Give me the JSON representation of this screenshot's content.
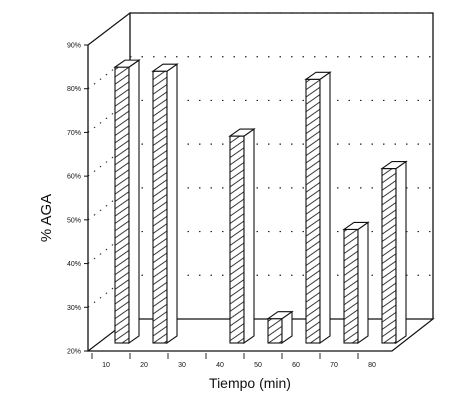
{
  "chart_data": {
    "type": "bar",
    "title": "",
    "xlabel": "Tiempo (min)",
    "ylabel": "% AGA",
    "x_tick_labels": [
      "10",
      "20",
      "30",
      "40",
      "50",
      "60",
      "70",
      "80"
    ],
    "y_tick_labels": [
      "20%",
      "30%",
      "40%",
      "50%",
      "60%",
      "70%",
      "80%",
      "90%"
    ],
    "ylim": [
      20,
      90
    ],
    "grid": "dotted horizontal on back wall",
    "style": "3D bars with diagonal hatching",
    "bars": [
      {
        "value": 88
      },
      {
        "value": 87
      },
      {
        "value": 71
      },
      {
        "value": 26
      },
      {
        "value": 85
      },
      {
        "value": 48
      },
      {
        "value": 63
      }
    ],
    "colors": {
      "ink": "#111111",
      "background": "#ffffff"
    }
  }
}
